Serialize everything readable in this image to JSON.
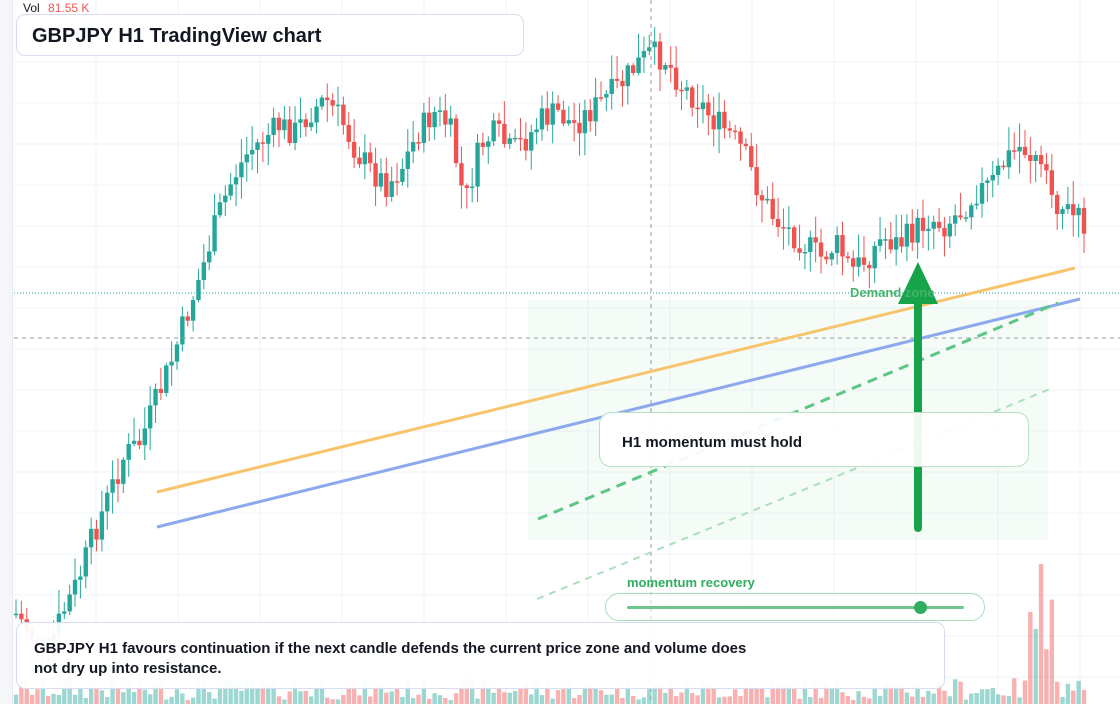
{
  "header": {
    "title": "GBPJPY H1 TradingView chart"
  },
  "volume_legend": {
    "label": "Vol",
    "value": "81.55 K"
  },
  "annotations": {
    "zone_label": "Demand zone",
    "note": "H1 momentum must hold",
    "arrow_direction": "up"
  },
  "momentum_slider": {
    "label": "momentum recovery",
    "level": 0.87
  },
  "caption": {
    "text": "GBPJPY H1 favours continuation if the next candle defends the current price zone and volume does not dry up into resistance."
  },
  "colors": {
    "bull": "#26a69a",
    "bear": "#ef5350",
    "accent_green": "#16a34a",
    "trendline_orange": "#f7c46c",
    "trendline_blue": "#8ca9ee"
  },
  "chart_data": {
    "type": "candlestick",
    "title": "GBPJPY H1 TradingView chart",
    "symbol": "GBPJPY",
    "timeframe": "H1",
    "grid": true,
    "candle_closes_relative": [
      0.1,
      0.07,
      0.04,
      0.1,
      0.15,
      0.22,
      0.28,
      0.34,
      0.36,
      0.42,
      0.48,
      0.55,
      0.62,
      0.7,
      0.76,
      0.8,
      0.82,
      0.84,
      0.83,
      0.86,
      0.88,
      0.85,
      0.8,
      0.77,
      0.75,
      0.78,
      0.83,
      0.86,
      0.84,
      0.72,
      0.81,
      0.83,
      0.8,
      0.82,
      0.85,
      0.86,
      0.84,
      0.86,
      0.88,
      0.9,
      0.93,
      0.95,
      0.94,
      0.9,
      0.88,
      0.85,
      0.83,
      0.8,
      0.74,
      0.7,
      0.68,
      0.66,
      0.64,
      0.66,
      0.62,
      0.64,
      0.67,
      0.66,
      0.68,
      0.7,
      0.69,
      0.71,
      0.74,
      0.75,
      0.79,
      0.81,
      0.78,
      0.73,
      0.71,
      0.69
    ],
    "candles_count": 70,
    "volume_legend_value": "81.55 K"
  }
}
